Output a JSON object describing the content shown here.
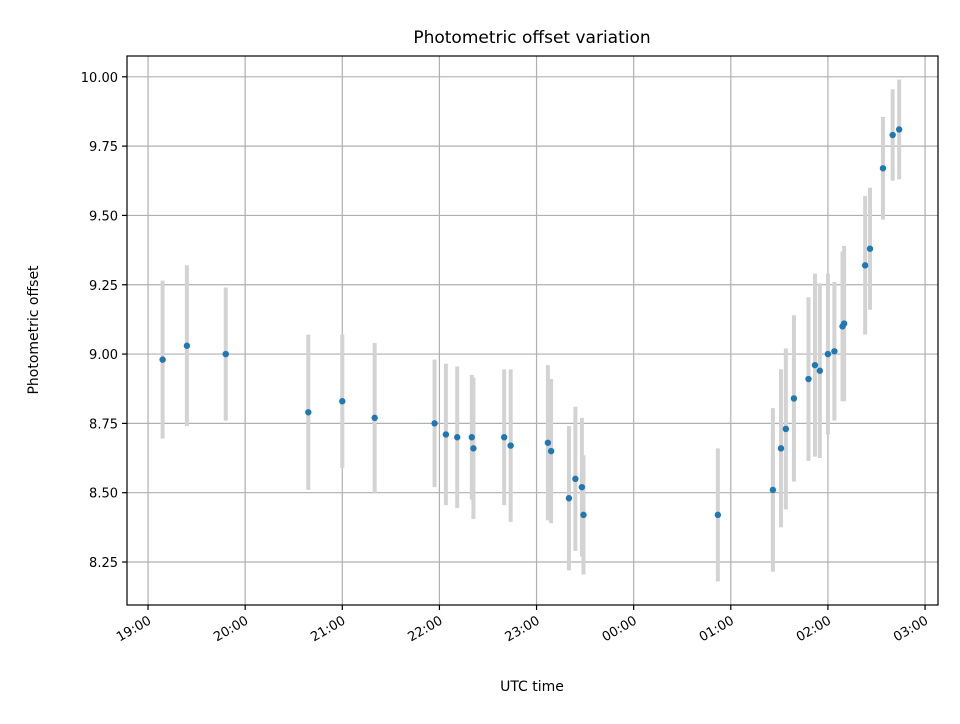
{
  "chart_data": {
    "type": "scatter",
    "title": "Photometric offset variation",
    "xlabel": "UTC time",
    "ylabel": "Photometric offset",
    "x_scale": "time",
    "xlim": [
      "18:47",
      "03:08"
    ],
    "ylim": [
      8.095,
      10.075
    ],
    "grid": true,
    "legend": "none",
    "colors": {
      "point": "#1f77b4",
      "errorbar": "#d3d3d3",
      "grid": "#b0b0b0"
    },
    "x_ticks": [
      {
        "time": "19:00",
        "label": "19:00"
      },
      {
        "time": "20:00",
        "label": "20:00"
      },
      {
        "time": "21:00",
        "label": "21:00"
      },
      {
        "time": "22:00",
        "label": "22:00"
      },
      {
        "time": "23:00",
        "label": "23:00"
      },
      {
        "time": "00:00",
        "label": "00:00"
      },
      {
        "time": "01:00",
        "label": "01:00"
      },
      {
        "time": "02:00",
        "label": "02:00"
      },
      {
        "time": "03:00",
        "label": "03:00"
      }
    ],
    "y_ticks": [
      {
        "value": 8.25,
        "label": "8.25"
      },
      {
        "value": 8.5,
        "label": "8.50"
      },
      {
        "value": 8.75,
        "label": "8.75"
      },
      {
        "value": 9.0,
        "label": "9.00"
      },
      {
        "value": 9.25,
        "label": "9.25"
      },
      {
        "value": 9.5,
        "label": "9.50"
      },
      {
        "value": 9.75,
        "label": "9.75"
      },
      {
        "value": 10.0,
        "label": "10.00"
      }
    ],
    "points": [
      {
        "x": "19:09",
        "y": 8.98,
        "yerr": 0.285
      },
      {
        "x": "19:24",
        "y": 9.03,
        "yerr": 0.29
      },
      {
        "x": "19:48",
        "y": 9.0,
        "yerr": 0.24
      },
      {
        "x": "20:39",
        "y": 8.79,
        "yerr": 0.28
      },
      {
        "x": "21:00",
        "y": 8.83,
        "yerr": 0.24
      },
      {
        "x": "21:20",
        "y": 8.77,
        "yerr": 0.27
      },
      {
        "x": "21:57",
        "y": 8.75,
        "yerr": 0.23
      },
      {
        "x": "22:04",
        "y": 8.71,
        "yerr": 0.255
      },
      {
        "x": "22:11",
        "y": 8.7,
        "yerr": 0.255
      },
      {
        "x": "22:20",
        "y": 8.7,
        "yerr": 0.225
      },
      {
        "x": "22:21",
        "y": 8.66,
        "yerr": 0.255
      },
      {
        "x": "22:40",
        "y": 8.7,
        "yerr": 0.245
      },
      {
        "x": "22:44",
        "y": 8.67,
        "yerr": 0.275
      },
      {
        "x": "23:07",
        "y": 8.68,
        "yerr": 0.28
      },
      {
        "x": "23:09",
        "y": 8.65,
        "yerr": 0.26
      },
      {
        "x": "23:20",
        "y": 8.48,
        "yerr": 0.26
      },
      {
        "x": "23:24",
        "y": 8.55,
        "yerr": 0.26
      },
      {
        "x": "23:28",
        "y": 8.52,
        "yerr": 0.25
      },
      {
        "x": "23:29",
        "y": 8.42,
        "yerr": 0.215
      },
      {
        "x": "00:52",
        "y": 8.42,
        "yerr": 0.24
      },
      {
        "x": "01:26",
        "y": 8.51,
        "yerr": 0.295
      },
      {
        "x": "01:31",
        "y": 8.66,
        "yerr": 0.285
      },
      {
        "x": "01:34",
        "y": 8.73,
        "yerr": 0.29
      },
      {
        "x": "01:39",
        "y": 8.84,
        "yerr": 0.3
      },
      {
        "x": "01:48",
        "y": 8.91,
        "yerr": 0.295
      },
      {
        "x": "01:52",
        "y": 8.96,
        "yerr": 0.33
      },
      {
        "x": "01:55",
        "y": 8.94,
        "yerr": 0.315
      },
      {
        "x": "02:00",
        "y": 9.0,
        "yerr": 0.29
      },
      {
        "x": "02:04",
        "y": 9.01,
        "yerr": 0.25
      },
      {
        "x": "02:09",
        "y": 9.1,
        "yerr": 0.27
      },
      {
        "x": "02:10",
        "y": 9.11,
        "yerr": 0.28
      },
      {
        "x": "02:23",
        "y": 9.32,
        "yerr": 0.25
      },
      {
        "x": "02:26",
        "y": 9.38,
        "yerr": 0.22
      },
      {
        "x": "02:34",
        "y": 9.67,
        "yerr": 0.185
      },
      {
        "x": "02:40",
        "y": 9.79,
        "yerr": 0.165
      },
      {
        "x": "02:44",
        "y": 9.81,
        "yerr": 0.18
      }
    ]
  }
}
